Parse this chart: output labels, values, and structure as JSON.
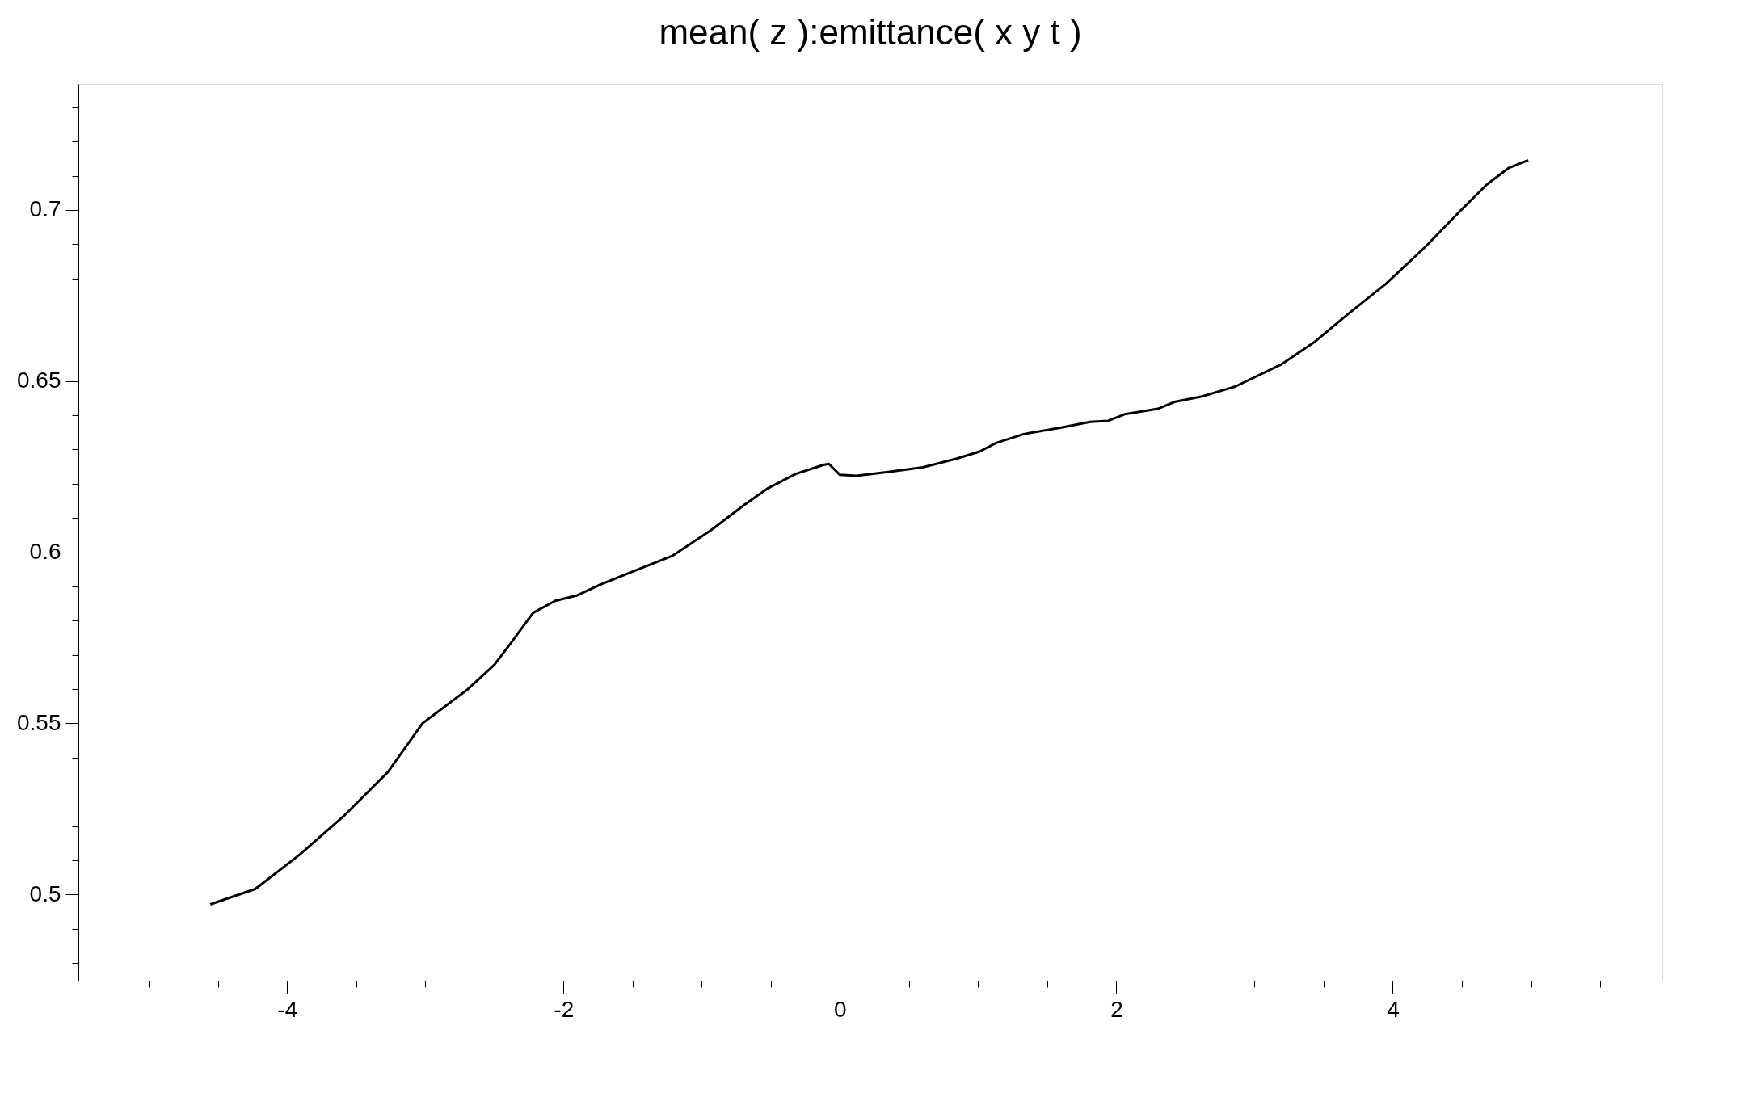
{
  "chart_data": {
    "type": "line",
    "title": "mean( z ):emittance( x y t )",
    "x": [
      -4.556,
      -4.23,
      -3.91,
      -3.59,
      -3.27,
      -3.02,
      -2.7,
      -2.5,
      -2.38,
      -2.22,
      -2.06,
      -1.9,
      -1.73,
      -1.49,
      -1.21,
      -0.93,
      -0.69,
      -0.52,
      -0.32,
      -0.12,
      -0.08,
      0.0,
      0.12,
      0.36,
      0.6,
      0.85,
      1.01,
      1.13,
      1.33,
      1.61,
      1.81,
      1.94,
      2.06,
      2.3,
      2.42,
      2.62,
      2.86,
      3.19,
      3.43,
      3.67,
      3.95,
      4.23,
      4.48,
      4.68,
      4.84,
      4.98
    ],
    "series": [
      {
        "color": "#000000",
        "values": [
          0.4971,
          0.5016,
          0.5116,
          0.5229,
          0.5358,
          0.55,
          0.5597,
          0.5671,
          0.5735,
          0.5823,
          0.5858,
          0.5874,
          0.5906,
          0.5945,
          0.599,
          0.6065,
          0.6139,
          0.6187,
          0.6229,
          0.6255,
          0.6258,
          0.6226,
          0.6223,
          0.6235,
          0.6248,
          0.6274,
          0.6294,
          0.6319,
          0.6345,
          0.6365,
          0.6381,
          0.6384,
          0.6403,
          0.6419,
          0.6439,
          0.6455,
          0.6484,
          0.6548,
          0.6613,
          0.6694,
          0.6784,
          0.689,
          0.6994,
          0.7074,
          0.7123,
          0.7145
        ]
      }
    ],
    "xlim": [
      -5.51,
      5.95
    ],
    "ylim": [
      0.4748,
      0.7368
    ],
    "xticks": [
      {
        "value": -5,
        "label": null
      },
      {
        "value": -4.5,
        "label": null
      },
      -4,
      {
        "value": -3.5,
        "label": null
      },
      {
        "value": -3,
        "label": null
      },
      {
        "value": -2.5,
        "label": null
      },
      -2,
      {
        "value": -1.5,
        "label": null
      },
      {
        "value": -1,
        "label": null
      },
      {
        "value": -0.5,
        "label": null
      },
      0,
      {
        "value": 0.5,
        "label": null
      },
      {
        "value": 1,
        "label": null
      },
      {
        "value": 1.5,
        "label": null
      },
      2,
      {
        "value": 2.5,
        "label": null
      },
      {
        "value": 3,
        "label": null
      },
      {
        "value": 3.5,
        "label": null
      },
      4,
      {
        "value": 4.5,
        "label": null
      },
      {
        "value": 5,
        "label": null
      },
      {
        "value": 5.5,
        "label": null
      }
    ],
    "yticks": [
      {
        "value": 0.48,
        "label": null
      },
      {
        "value": 0.49,
        "label": null
      },
      0.5,
      {
        "value": 0.51,
        "label": null
      },
      {
        "value": 0.52,
        "label": null
      },
      {
        "value": 0.53,
        "label": null
      },
      {
        "value": 0.54,
        "label": null
      },
      0.55,
      {
        "value": 0.56,
        "label": null
      },
      {
        "value": 0.57,
        "label": null
      },
      {
        "value": 0.58,
        "label": null
      },
      {
        "value": 0.59,
        "label": null
      },
      0.6,
      {
        "value": 0.61,
        "label": null
      },
      {
        "value": 0.62,
        "label": null
      },
      {
        "value": 0.63,
        "label": null
      },
      {
        "value": 0.64,
        "label": null
      },
      0.65,
      {
        "value": 0.66,
        "label": null
      },
      {
        "value": 0.67,
        "label": null
      },
      {
        "value": 0.68,
        "label": null
      },
      {
        "value": 0.69,
        "label": null
      },
      0.7,
      {
        "value": 0.71,
        "label": null
      },
      {
        "value": 0.72,
        "label": null
      },
      {
        "value": 0.73,
        "label": null
      }
    ],
    "grid": false,
    "marker": "none",
    "line_style": "solid"
  }
}
